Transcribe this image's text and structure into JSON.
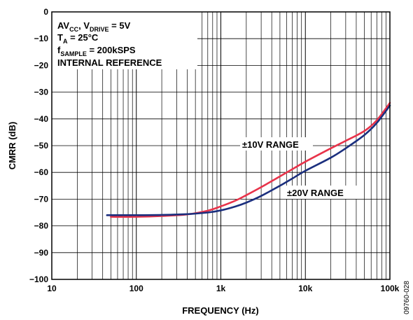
{
  "chart_data": {
    "type": "line",
    "xscale": "log",
    "xlabel": "FREQUENCY (Hz)",
    "ylabel": "CMRR (dB)",
    "xlim": [
      10,
      100000
    ],
    "ylim": [
      -100,
      0
    ],
    "grid": true,
    "x_tick_values": [
      10,
      100,
      1000,
      10000,
      100000
    ],
    "x_tick_labels": [
      "10",
      "100",
      "1k",
      "10k",
      "100k"
    ],
    "y_tick_values": [
      0,
      -10,
      -20,
      -30,
      -40,
      -50,
      -60,
      -70,
      -80,
      -90,
      -100
    ],
    "y_tick_labels": [
      "0",
      "−10",
      "−20",
      "−30",
      "−40",
      "−50",
      "−60",
      "−70",
      "−80",
      "−90",
      "−100"
    ],
    "conditions": [
      {
        "main": "AV",
        "sub": "CC",
        "rest": ", V",
        "sub2": "DRIVE",
        "rest2": " = 5V"
      },
      {
        "main": "T",
        "sub": "A",
        "rest": " = 25°C",
        "sub2": "",
        "rest2": ""
      },
      {
        "main": "f",
        "sub": "SAMPLE",
        "rest": " = 200kSPS",
        "sub2": "",
        "rest2": ""
      },
      {
        "main": "INTERNAL REFERENCE",
        "sub": "",
        "rest": "",
        "sub2": "",
        "rest2": ""
      }
    ],
    "series": [
      {
        "name": "±10V RANGE",
        "color": "#e8334a",
        "x": [
          50,
          100,
          200,
          400,
          700,
          1000,
          1500,
          2000,
          3000,
          5000,
          7000,
          10000,
          20000,
          30000,
          50000,
          70000,
          100000
        ],
        "y": [
          -76.6,
          -76.6,
          -76.3,
          -75.7,
          -74.3,
          -72.7,
          -70.5,
          -68.5,
          -65.5,
          -61.5,
          -58.8,
          -56,
          -51,
          -48.2,
          -44.5,
          -40.5,
          -34
        ]
      },
      {
        "name": "±20V RANGE",
        "color": "#1b2f7e",
        "x": [
          45,
          100,
          200,
          400,
          700,
          1000,
          1500,
          2000,
          3000,
          5000,
          7000,
          10000,
          20000,
          30000,
          50000,
          70000,
          100000
        ],
        "y": [
          -76,
          -76,
          -75.9,
          -75.6,
          -75,
          -74.2,
          -72.7,
          -71.3,
          -68.8,
          -65,
          -62.3,
          -59.4,
          -54.5,
          -51,
          -46,
          -41.5,
          -35
        ]
      }
    ],
    "figure_id": "09760-028"
  }
}
